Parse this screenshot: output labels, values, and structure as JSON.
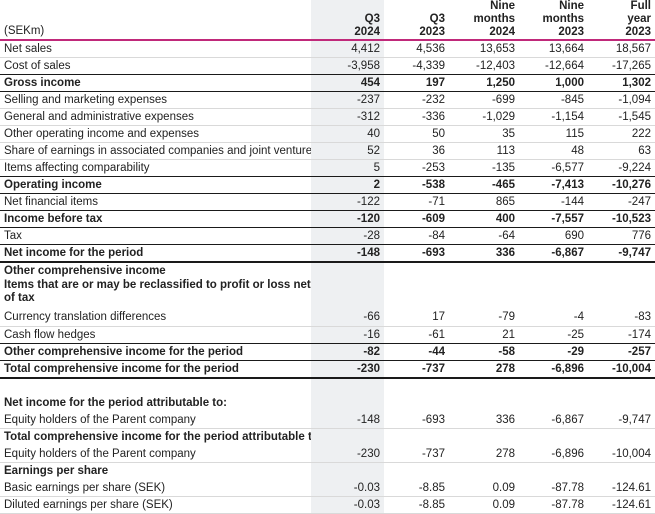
{
  "header": {
    "label": "(SEKm)",
    "columns": [
      [
        "Q3",
        "2024"
      ],
      [
        "Q3",
        "2023"
      ],
      [
        "Nine",
        "months",
        "2024"
      ],
      [
        "Nine",
        "months",
        "2023"
      ],
      [
        "Full",
        "year",
        "2023"
      ]
    ]
  },
  "rows": [
    {
      "label": "Net sales",
      "values": [
        "4,412",
        "4,536",
        "13,653",
        "13,664",
        "18,567"
      ],
      "style": "normal"
    },
    {
      "label": "Cost of sales",
      "values": [
        "-3,958",
        "-4,339",
        "-12,403",
        "-12,664",
        "-17,265"
      ],
      "style": "bold-border"
    },
    {
      "label": "Gross income",
      "values": [
        "454",
        "197",
        "1,250",
        "1,000",
        "1,302"
      ],
      "style": "bold"
    },
    {
      "label": "Selling and marketing expenses",
      "values": [
        "-237",
        "-232",
        "-699",
        "-845",
        "-1,094"
      ],
      "style": "normal"
    },
    {
      "label": "General and administrative expenses",
      "values": [
        "-312",
        "-336",
        "-1,029",
        "-1,154",
        "-1,545"
      ],
      "style": "normal"
    },
    {
      "label": "Other operating income and expenses",
      "values": [
        "40",
        "50",
        "35",
        "115",
        "222"
      ],
      "style": "normal"
    },
    {
      "label": "Share of earnings in associated companies and joint ventures",
      "values": [
        "52",
        "36",
        "113",
        "48",
        "63"
      ],
      "style": "normal"
    },
    {
      "label": "Items affecting comparability",
      "values": [
        "5",
        "-253",
        "-135",
        "-6,577",
        "-9,224"
      ],
      "style": "bold-border"
    },
    {
      "label": "Operating income",
      "values": [
        "2",
        "-538",
        "-465",
        "-7,413",
        "-10,276"
      ],
      "style": "bold"
    },
    {
      "label": "Net financial items",
      "values": [
        "-122",
        "-71",
        "865",
        "-144",
        "-247"
      ],
      "style": "bold-border"
    },
    {
      "label": "Income before tax",
      "values": [
        "-120",
        "-609",
        "400",
        "-7,557",
        "-10,523"
      ],
      "style": "bold"
    },
    {
      "label": "Tax",
      "values": [
        "-28",
        "-84",
        "-64",
        "690",
        "776"
      ],
      "style": "bold-border"
    },
    {
      "label": "Net income for the period",
      "values": [
        "-148",
        "-693",
        "336",
        "-6,867",
        "-9,747"
      ],
      "style": "thick"
    },
    {
      "label": "Other comprehensive income",
      "values": [
        "",
        "",
        "",
        "",
        ""
      ],
      "style": "section"
    },
    {
      "label": "Items that are or may be reclassified to profit or loss net of tax",
      "values": [
        "",
        "",
        "",
        "",
        ""
      ],
      "style": "section-wrap"
    },
    {
      "label": "Currency translation differences",
      "values": [
        "-66",
        "17",
        "-79",
        "-4",
        "-83"
      ],
      "style": "normal"
    },
    {
      "label": "Cash flow hedges",
      "values": [
        "-16",
        "-61",
        "21",
        "-25",
        "-174"
      ],
      "style": "bold-border"
    },
    {
      "label": "Other comprehensive income for the period",
      "values": [
        "-82",
        "-44",
        "-58",
        "-29",
        "-257"
      ],
      "style": "bold"
    },
    {
      "label": "Total comprehensive income for the period",
      "values": [
        "-230",
        "-737",
        "278",
        "-6,896",
        "-10,004"
      ],
      "style": "thick"
    },
    {
      "label": "",
      "values": [
        "",
        "",
        "",
        "",
        ""
      ],
      "style": "gap"
    },
    {
      "label": "Net income for the period attributable to:",
      "values": [
        "",
        "",
        "",
        "",
        ""
      ],
      "style": "section"
    },
    {
      "label": "Equity holders of the Parent company",
      "values": [
        "-148",
        "-693",
        "336",
        "-6,867",
        "-9,747"
      ],
      "style": "normal"
    },
    {
      "label": "Total comprehensive income for the period attributable to:",
      "values": [
        "",
        "",
        "",
        "",
        ""
      ],
      "style": "section"
    },
    {
      "label": "Equity holders of the Parent company",
      "values": [
        "-230",
        "-737",
        "278",
        "-6,896",
        "-10,004"
      ],
      "style": "normal"
    },
    {
      "label": "Earnings per share",
      "values": [
        "",
        "",
        "",
        "",
        ""
      ],
      "style": "section"
    },
    {
      "label": "Basic earnings per share (SEK)",
      "values": [
        "-0.03",
        "-8.85",
        "0.09",
        "-87.78",
        "-124.61"
      ],
      "style": "normal"
    },
    {
      "label": "Diluted earnings per share (SEK)",
      "values": [
        "-0.03",
        "-8.85",
        "0.09",
        "-87.78",
        "-124.61"
      ],
      "style": "normal"
    }
  ],
  "colors": {
    "header_rule": "#c0297a",
    "shaded_column": "#eef0f2"
  }
}
